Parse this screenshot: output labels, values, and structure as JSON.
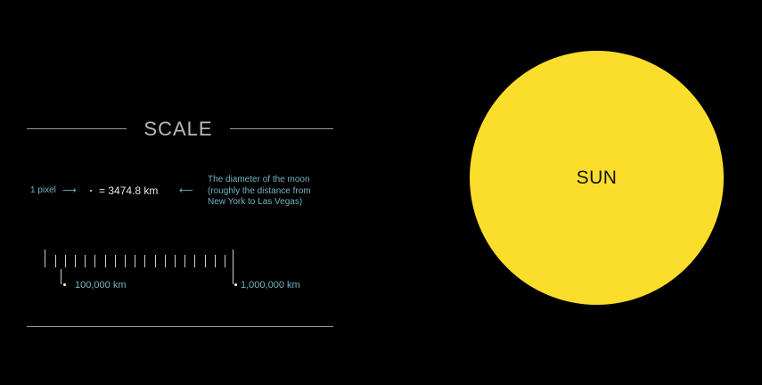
{
  "scale": {
    "title": "SCALE",
    "pixel_label": "1 pixel",
    "arrow_right": "⟶",
    "equals_value": "= 3474.8 km",
    "arrow_left": "⟵",
    "moon_note": [
      "The diameter of the moon",
      "(roughly the distance from",
      "New York to Las Vegas)"
    ],
    "ruler": {
      "small_label": "100,000 km",
      "large_label": "1,000,000 km"
    }
  },
  "sun": {
    "label": "SUN",
    "color": "#fbdd2b"
  },
  "colors": {
    "background": "#000000",
    "accent_text": "#6fb4c2",
    "rule": "#9a9a9a"
  }
}
